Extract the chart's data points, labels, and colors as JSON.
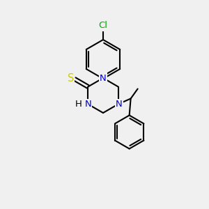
{
  "bg_color": "#f0f0f0",
  "bond_color": "#000000",
  "bond_width": 1.5,
  "atom_colors": {
    "N": "#0000cc",
    "S": "#cccc00",
    "Cl": "#00aa00"
  },
  "font_size": 9.5
}
